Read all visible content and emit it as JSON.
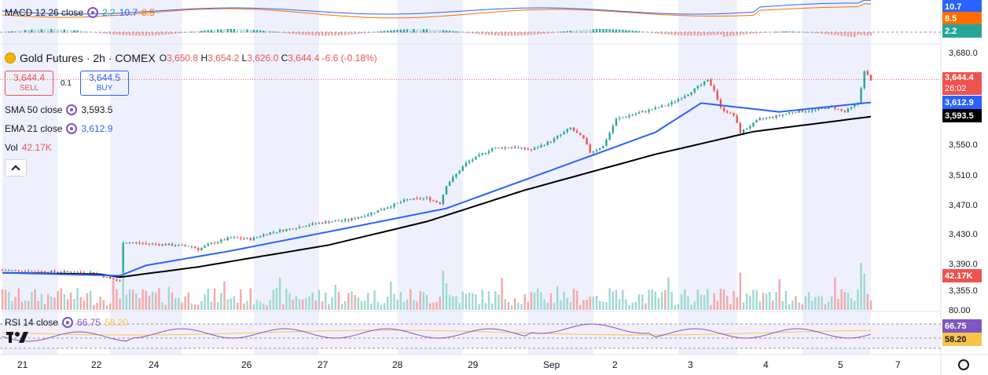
{
  "macd": {
    "label": "MACD 12 26 close",
    "v1": "2.2",
    "v2": "10.7",
    "v3": "8.5",
    "colors": {
      "v1": "#26a69a",
      "v2": "#2962ff",
      "v3": "#ff6d00"
    }
  },
  "symbol": {
    "title": "Gold Futures · 2h · COMEX",
    "o_label": "O",
    "o": "3,650.8",
    "h_label": "H",
    "h": "3,654.2",
    "l_label": "L",
    "l": "3,626.0",
    "c_label": "C",
    "c": "3,644.4",
    "change": "-6.6 (-0.18%)",
    "logo_icon": "gold-coin-icon"
  },
  "trade": {
    "sell_price": "3,644.4",
    "sell_label": "SELL",
    "spread": "0.1",
    "buy_price": "3,644.5",
    "buy_label": "BUY"
  },
  "indicators": {
    "sma_label": "SMA 50 close",
    "sma_value": "3,593.5",
    "ema_label": "EMA 21 close",
    "ema_value": "3,612.9",
    "vol_label": "Vol",
    "vol_value": "42.17K"
  },
  "rsi": {
    "label": "RSI 14 close",
    "v1": "66.75",
    "v2": "58.20"
  },
  "right_axis": {
    "macd_tags": [
      {
        "text": "10.7",
        "color": "#2962ff"
      },
      {
        "text": "8.5",
        "color": "#ff6d00"
      },
      {
        "text": "2.2",
        "color": "#26a69a"
      }
    ],
    "price_ticks": [
      "3,680.0",
      "3,550.0",
      "3,510.0",
      "3,470.0",
      "3,430.0",
      "3,390.0",
      "3,355.0"
    ],
    "tag_price": "3,644.4",
    "tag_countdown": "26:02",
    "tag_ema": "3,612.9",
    "tag_sma": "3,593.5",
    "tag_vol": "42.17K",
    "rsi_ticks": [
      "80.00"
    ],
    "tag_rsi1": "66.75",
    "tag_rsi2": "58.20"
  },
  "x_axis": {
    "labels": [
      "21",
      "22",
      "24",
      "26",
      "27",
      "28",
      "29",
      "Sep",
      "2",
      "3",
      "4",
      "5",
      "7"
    ]
  },
  "chart_data": {
    "type": "candlestick",
    "symbol": "Gold Futures · 2h · COMEX",
    "current_price": 3644.4,
    "y_ticks": [
      3355,
      3390,
      3430,
      3470,
      3510,
      3550,
      3680
    ],
    "close_path": [
      [
        0,
        3384
      ],
      [
        10,
        3382
      ],
      [
        20,
        3381
      ],
      [
        28,
        3380
      ],
      [
        33,
        3372
      ],
      [
        36,
        3368
      ],
      [
        37,
        3422
      ],
      [
        44,
        3420
      ],
      [
        52,
        3418
      ],
      [
        58,
        3416
      ],
      [
        60,
        3412
      ],
      [
        64,
        3420
      ],
      [
        70,
        3428
      ],
      [
        76,
        3426
      ],
      [
        82,
        3435
      ],
      [
        88,
        3440
      ],
      [
        94,
        3446
      ],
      [
        100,
        3450
      ],
      [
        106,
        3452
      ],
      [
        112,
        3460
      ],
      [
        118,
        3470
      ],
      [
        124,
        3480
      ],
      [
        130,
        3482
      ],
      [
        134,
        3475
      ],
      [
        136,
        3500
      ],
      [
        142,
        3530
      ],
      [
        150,
        3550
      ],
      [
        156,
        3552
      ],
      [
        162,
        3548
      ],
      [
        168,
        3560
      ],
      [
        174,
        3578
      ],
      [
        178,
        3563
      ],
      [
        180,
        3545
      ],
      [
        184,
        3553
      ],
      [
        188,
        3590
      ],
      [
        196,
        3600
      ],
      [
        204,
        3610
      ],
      [
        210,
        3625
      ],
      [
        216,
        3643
      ],
      [
        218,
        3630
      ],
      [
        220,
        3605
      ],
      [
        224,
        3595
      ],
      [
        226,
        3572
      ],
      [
        232,
        3590
      ],
      [
        238,
        3595
      ],
      [
        242,
        3600
      ],
      [
        248,
        3602
      ],
      [
        254,
        3607
      ],
      [
        258,
        3600
      ],
      [
        262,
        3612
      ],
      [
        264,
        3655
      ],
      [
        266,
        3644
      ]
    ],
    "sma50": [
      [
        0,
        3380
      ],
      [
        30,
        3378
      ],
      [
        36,
        3374
      ],
      [
        60,
        3388
      ],
      [
        100,
        3418
      ],
      [
        130,
        3450
      ],
      [
        160,
        3493
      ],
      [
        200,
        3542
      ],
      [
        230,
        3573
      ],
      [
        266,
        3593.5
      ]
    ],
    "ema21": [
      [
        0,
        3380
      ],
      [
        36,
        3376
      ],
      [
        44,
        3390
      ],
      [
        70,
        3410
      ],
      [
        110,
        3445
      ],
      [
        136,
        3468
      ],
      [
        168,
        3520
      ],
      [
        200,
        3572
      ],
      [
        214,
        3612
      ],
      [
        238,
        3600
      ],
      [
        266,
        3612.9
      ]
    ],
    "volume_last": "42.17K",
    "rsi": {
      "period": 14,
      "value": 66.75,
      "ma": 58.2,
      "levels": [
        80.0,
        58.2
      ]
    },
    "macd": {
      "macd": 10.7,
      "signal": 8.5,
      "histogram": 2.2
    }
  }
}
